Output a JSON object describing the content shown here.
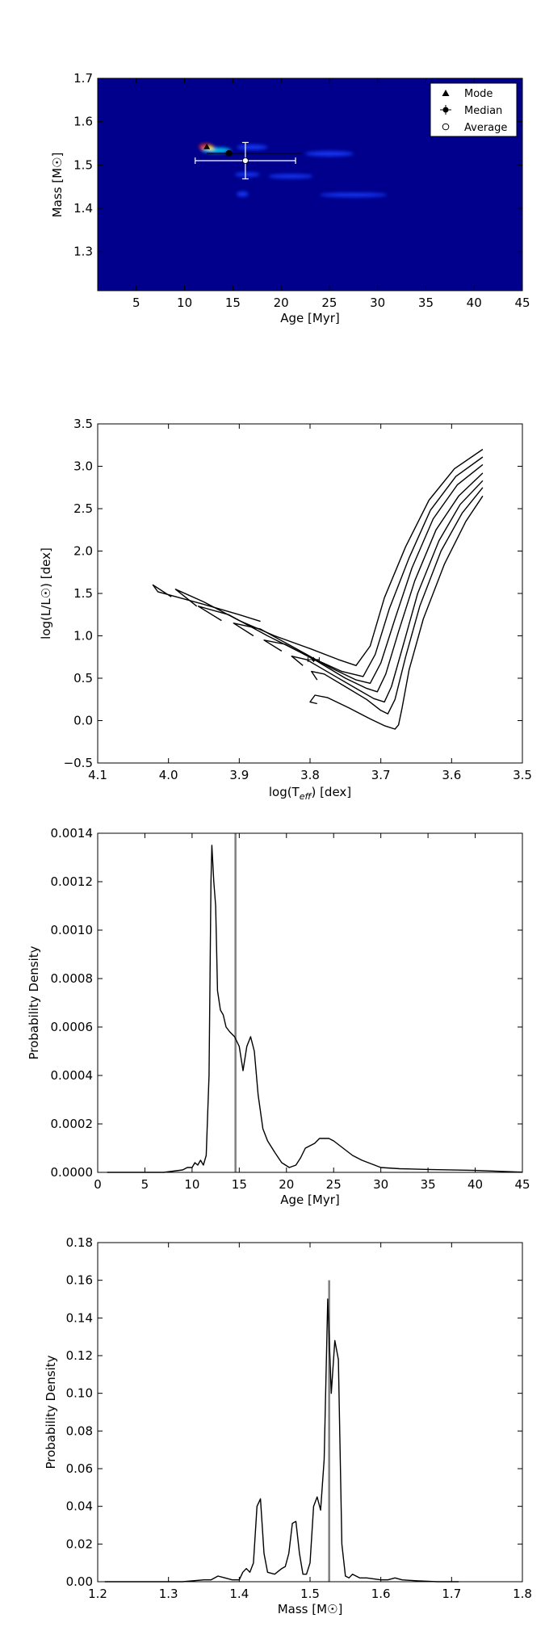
{
  "chart_data": [
    {
      "type": "heatmap",
      "xlabel": "Age [Myr]",
      "ylabel": "Mass [M☉]",
      "xlim": [
        1,
        45
      ],
      "ylim": [
        1.21,
        1.7
      ],
      "xticks": [
        5,
        10,
        15,
        20,
        25,
        30,
        35,
        40,
        45
      ],
      "yticks": [
        1.3,
        1.4,
        1.5,
        1.6,
        1.7
      ],
      "tick_labels_x": [
        "5",
        "10",
        "15",
        "20",
        "25",
        "30",
        "35",
        "40",
        "45"
      ],
      "tick_labels_y": [
        "1.3",
        "1.4",
        "1.5",
        "1.6",
        "1.7"
      ],
      "colors": {
        "background": "#00008c",
        "hot": "#ff3300",
        "warm": "#ffee00",
        "cool": "#00e0ff",
        "blue": "#1a3cff"
      },
      "blobs": [
        {
          "x": 12.2,
          "y": 1.542,
          "rx": 0.7,
          "ry": 0.007,
          "color": "hot"
        },
        {
          "x": 13.3,
          "y": 1.534,
          "rx": 1.5,
          "ry": 0.006,
          "color": "cool"
        },
        {
          "x": 17.0,
          "y": 1.541,
          "rx": 1.6,
          "ry": 0.006,
          "color": "blue"
        },
        {
          "x": 25.0,
          "y": 1.526,
          "rx": 2.5,
          "ry": 0.006,
          "color": "blue"
        },
        {
          "x": 16.5,
          "y": 1.478,
          "rx": 1.3,
          "ry": 0.005,
          "color": "blue"
        },
        {
          "x": 21.0,
          "y": 1.474,
          "rx": 2.3,
          "ry": 0.005,
          "color": "blue"
        },
        {
          "x": 16.0,
          "y": 1.433,
          "rx": 0.6,
          "ry": 0.006,
          "color": "blue"
        },
        {
          "x": 27.5,
          "y": 1.431,
          "rx": 3.5,
          "ry": 0.005,
          "color": "blue"
        }
      ],
      "markers": {
        "mode": {
          "x": 12.3,
          "y": 1.542
        },
        "median": {
          "x": 14.6,
          "y": 1.527,
          "xerr": [
            2.3,
            7.5
          ],
          "yerr": [
            0.005,
            0.005
          ]
        },
        "average": {
          "x": 16.3,
          "y": 1.51,
          "xerr": [
            5.2,
            5.2
          ],
          "yerr": [
            0.042,
            0.042
          ]
        }
      },
      "legend": {
        "location": "top-right",
        "entries": [
          "Mode",
          "Median",
          "Average"
        ]
      }
    },
    {
      "type": "line",
      "xlabel": "log(T_eff) [dex]",
      "ylabel": "log(L/L☉) [dex]",
      "xlim": [
        4.1,
        3.5
      ],
      "ylim": [
        -0.5,
        3.5
      ],
      "xticks": [
        4.1,
        4.0,
        3.9,
        3.8,
        3.7,
        3.6,
        3.5
      ],
      "yticks": [
        -0.5,
        0.0,
        0.5,
        1.0,
        1.5,
        2.0,
        2.5,
        3.0,
        3.5
      ],
      "tick_labels_x": [
        "4.1",
        "4.0",
        "3.9",
        "3.8",
        "3.7",
        "3.6",
        "3.5"
      ],
      "tick_labels_y": [
        "−0.5",
        "0.0",
        "0.5",
        "1.0",
        "1.5",
        "2.0",
        "2.5",
        "3.0",
        "3.5"
      ],
      "series": [
        {
          "x": [
            3.79,
            3.8,
            3.793,
            3.775,
            3.745,
            3.715,
            3.695,
            3.68,
            3.675,
            3.67,
            3.66,
            3.64,
            3.61,
            3.58,
            3.556
          ],
          "y": [
            0.2,
            0.22,
            0.3,
            0.27,
            0.15,
            0.02,
            -0.06,
            -0.1,
            -0.05,
            0.15,
            0.6,
            1.2,
            1.85,
            2.35,
            2.65
          ]
        },
        {
          "x": [
            3.79,
            3.798,
            3.78,
            3.75,
            3.72,
            3.7,
            3.69,
            3.68,
            3.665,
            3.645,
            3.615,
            3.585,
            3.556
          ],
          "y": [
            0.48,
            0.58,
            0.55,
            0.4,
            0.25,
            0.12,
            0.08,
            0.25,
            0.75,
            1.35,
            2.0,
            2.45,
            2.75
          ]
        },
        {
          "x": [
            3.81,
            3.826,
            3.805,
            3.77,
            3.735,
            3.71,
            3.695,
            3.685,
            3.668,
            3.648,
            3.618,
            3.588,
            3.556
          ],
          "y": [
            0.65,
            0.76,
            0.72,
            0.55,
            0.38,
            0.26,
            0.22,
            0.4,
            0.9,
            1.5,
            2.12,
            2.55,
            2.83
          ]
        },
        {
          "x": [
            3.84,
            3.865,
            3.835,
            3.79,
            3.75,
            3.72,
            3.705,
            3.693,
            3.675,
            3.652,
            3.622,
            3.59,
            3.556
          ],
          "y": [
            0.82,
            0.95,
            0.9,
            0.7,
            0.5,
            0.38,
            0.34,
            0.55,
            1.05,
            1.65,
            2.25,
            2.65,
            2.92
          ]
        },
        {
          "x": [
            3.88,
            3.908,
            3.87,
            3.82,
            3.77,
            3.735,
            3.715,
            3.7,
            3.68,
            3.656,
            3.626,
            3.592,
            3.556
          ],
          "y": [
            1.0,
            1.15,
            1.08,
            0.85,
            0.62,
            0.48,
            0.44,
            0.68,
            1.2,
            1.8,
            2.38,
            2.78,
            3.02
          ]
        },
        {
          "x": [
            3.925,
            3.958,
            3.915,
            3.86,
            3.8,
            3.755,
            3.725,
            3.708,
            3.688,
            3.66,
            3.63,
            3.594,
            3.556
          ],
          "y": [
            1.18,
            1.35,
            1.25,
            1.0,
            0.75,
            0.58,
            0.52,
            0.78,
            1.32,
            1.92,
            2.48,
            2.88,
            3.11
          ]
        },
        {
          "x": [
            3.96,
            3.99,
            3.95,
            3.9,
            3.85,
            3.8,
            3.76,
            3.735,
            3.715,
            3.695,
            3.665,
            3.632,
            3.596,
            3.556
          ],
          "y": [
            1.35,
            1.55,
            1.4,
            1.18,
            1.0,
            0.85,
            0.72,
            0.65,
            0.88,
            1.45,
            2.05,
            2.6,
            2.97,
            3.2
          ]
        },
        {
          "x": [
            3.996,
            4.022,
            4.015,
            3.95,
            3.9,
            3.87
          ],
          "y": [
            1.46,
            1.6,
            1.52,
            1.37,
            1.25,
            1.17
          ]
        }
      ],
      "point": {
        "x": 3.795,
        "y": 0.72,
        "xerr": 0.008,
        "yerr": 0.03
      }
    },
    {
      "type": "line",
      "xlabel": "Age [Myr]",
      "ylabel": "Probability Density",
      "xlim": [
        0,
        45
      ],
      "ylim": [
        0,
        0.0014
      ],
      "xticks": [
        0,
        5,
        10,
        15,
        20,
        25,
        30,
        35,
        40,
        45
      ],
      "yticks": [
        0,
        0.0002,
        0.0004,
        0.0006,
        0.0008,
        0.001,
        0.0012,
        0.0014
      ],
      "tick_labels_x": [
        "0",
        "5",
        "10",
        "15",
        "20",
        "25",
        "30",
        "35",
        "40",
        "45"
      ],
      "tick_labels_y": [
        "0.0000",
        "0.0002",
        "0.0004",
        "0.0006",
        "0.0008",
        "0.0010",
        "0.0012",
        "0.0014"
      ],
      "vline": 14.6,
      "series": [
        {
          "x": [
            1,
            7,
            8,
            9,
            9.5,
            10,
            10.3,
            10.6,
            10.9,
            11.2,
            11.5,
            11.8,
            12.0,
            12.1,
            12.3,
            12.5,
            12.7,
            13.0,
            13.3,
            13.6,
            14.0,
            14.5,
            15.0,
            15.4,
            15.8,
            16.2,
            16.6,
            17.0,
            17.5,
            18,
            18.8,
            19.5,
            20.3,
            21,
            21.5,
            22,
            22.5,
            23,
            23.5,
            24,
            24.5,
            25,
            26,
            27,
            28,
            30,
            32,
            35,
            40,
            45
          ],
          "y": [
            0,
            0,
            5e-06,
            1e-05,
            2e-05,
            2e-05,
            4e-05,
            3e-05,
            5e-05,
            3e-05,
            7e-05,
            0.0004,
            0.0012,
            0.00135,
            0.0012,
            0.0011,
            0.00075,
            0.00067,
            0.00065,
            0.0006,
            0.00058,
            0.00056,
            0.00052,
            0.00042,
            0.00052,
            0.00056,
            0.0005,
            0.00032,
            0.00018,
            0.00013,
            8e-05,
            4e-05,
            2e-05,
            3e-05,
            6e-05,
            0.0001,
            0.00011,
            0.00012,
            0.00014,
            0.00014,
            0.00014,
            0.00013,
            0.0001,
            7e-05,
            5e-05,
            2e-05,
            1.5e-05,
            1.2e-05,
            8e-06,
            1e-06
          ]
        }
      ]
    },
    {
      "type": "line",
      "xlabel": "Mass [M☉]",
      "ylabel": "Probability Density",
      "xlim": [
        1.2,
        1.8
      ],
      "ylim": [
        0,
        0.18
      ],
      "xticks": [
        1.2,
        1.3,
        1.4,
        1.5,
        1.6,
        1.7,
        1.8
      ],
      "yticks": [
        0,
        0.02,
        0.04,
        0.06,
        0.08,
        0.1,
        0.12,
        0.14,
        0.16,
        0.18
      ],
      "tick_labels_x": [
        "1.2",
        "1.3",
        "1.4",
        "1.5",
        "1.6",
        "1.7",
        "1.8"
      ],
      "tick_labels_y": [
        "0.00",
        "0.02",
        "0.04",
        "0.06",
        "0.08",
        "0.10",
        "0.12",
        "0.14",
        "0.16",
        "0.18"
      ],
      "vline": 1.527,
      "series": [
        {
          "x": [
            1.21,
            1.32,
            1.35,
            1.36,
            1.37,
            1.38,
            1.39,
            1.4,
            1.405,
            1.41,
            1.415,
            1.42,
            1.425,
            1.43,
            1.435,
            1.44,
            1.45,
            1.46,
            1.465,
            1.47,
            1.475,
            1.48,
            1.485,
            1.49,
            1.495,
            1.5,
            1.505,
            1.51,
            1.515,
            1.52,
            1.525,
            1.53,
            1.535,
            1.54,
            1.545,
            1.55,
            1.555,
            1.56,
            1.565,
            1.57,
            1.58,
            1.6,
            1.61,
            1.62,
            1.63,
            1.65,
            1.68,
            1.71
          ],
          "y": [
            0,
            0,
            0.001,
            0.001,
            0.003,
            0.002,
            0.001,
            0.001,
            0.005,
            0.007,
            0.005,
            0.01,
            0.04,
            0.044,
            0.015,
            0.005,
            0.004,
            0.007,
            0.008,
            0.015,
            0.031,
            0.032,
            0.015,
            0.004,
            0.004,
            0.01,
            0.04,
            0.045,
            0.038,
            0.065,
            0.15,
            0.1,
            0.128,
            0.118,
            0.02,
            0.003,
            0.002,
            0.004,
            0.003,
            0.002,
            0.002,
            0.001,
            0.001,
            0.002,
            0.001,
            0.0005,
            0,
            0
          ]
        }
      ]
    }
  ]
}
